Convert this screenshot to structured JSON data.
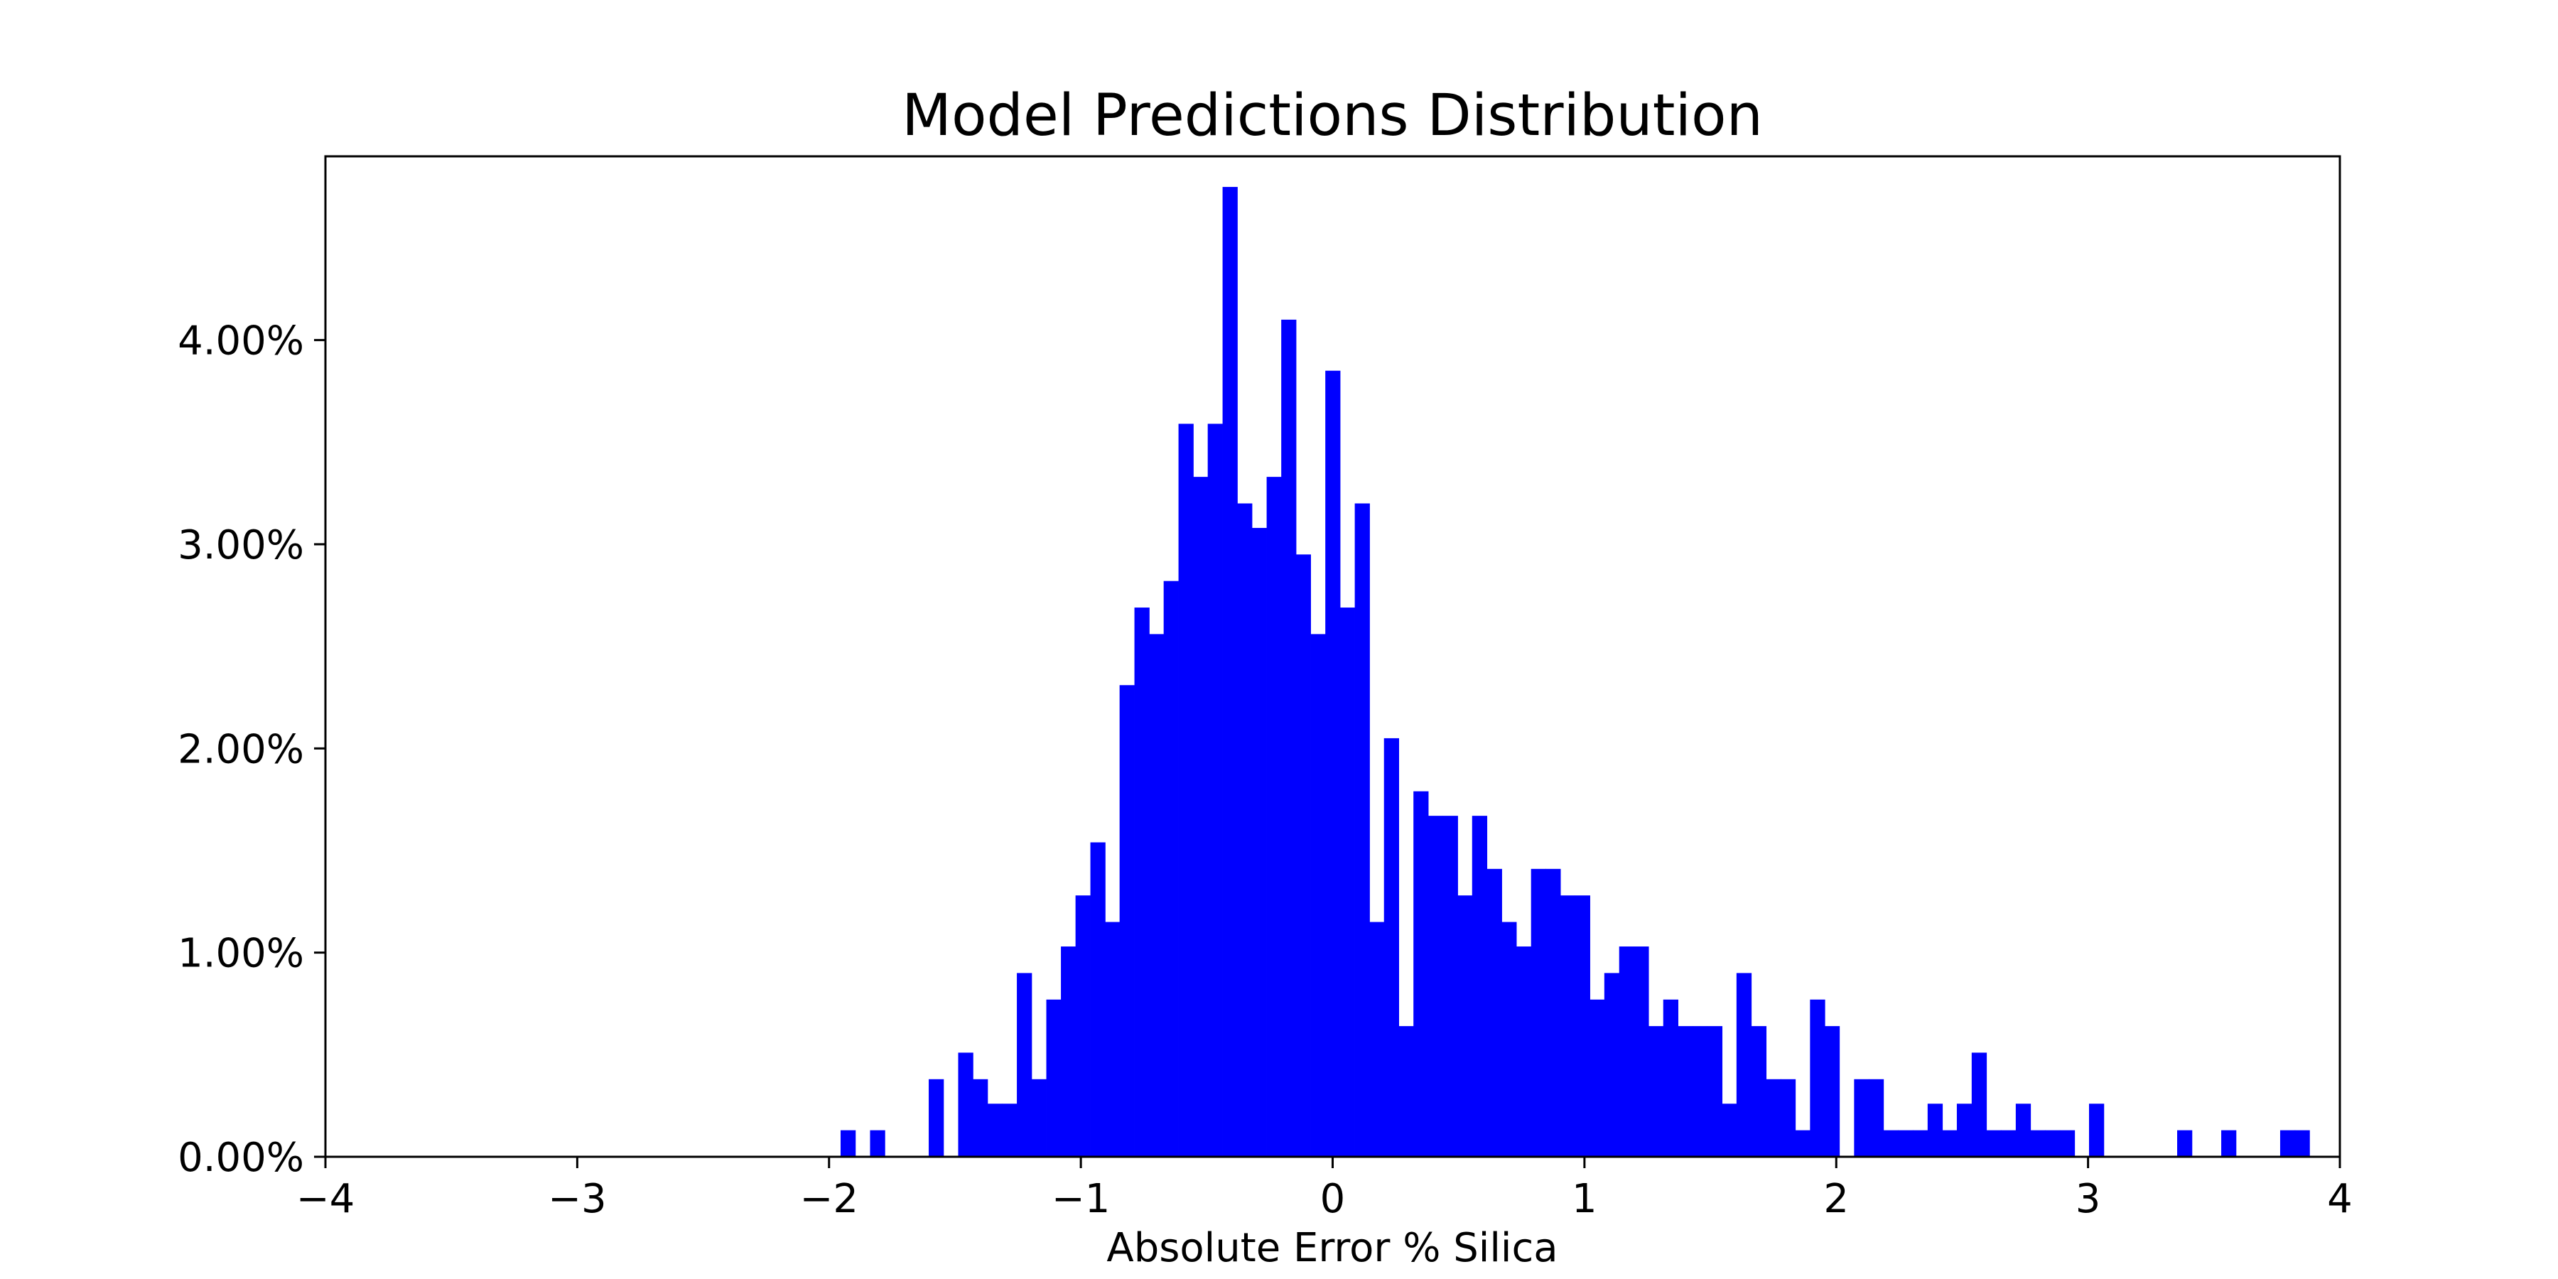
{
  "chart_data": {
    "type": "bar",
    "title": "Model Predictions Distribution",
    "xlabel": "Absolute Error % Silica",
    "ylabel": "",
    "xlim": [
      -4,
      4
    ],
    "ylim": [
      0,
      4.9
    ],
    "x_ticks": [
      -4,
      -3,
      -2,
      -1,
      0,
      1,
      2,
      3,
      4
    ],
    "x_tick_labels": [
      "−4",
      "−3",
      "−2",
      "−1",
      "0",
      "1",
      "2",
      "3",
      "4"
    ],
    "y_ticks": [
      0,
      1,
      2,
      3,
      4
    ],
    "y_tick_labels": [
      "0.00%",
      "1.00%",
      "2.00%",
      "3.00%",
      "4.00%"
    ],
    "bar_color": "#0000ff",
    "grid": false,
    "legend": "none",
    "bin_width": 0.0583,
    "x": [
      -1.925,
      -1.867,
      -1.808,
      -1.75,
      -1.692,
      -1.633,
      -1.575,
      -1.517,
      -1.458,
      -1.4,
      -1.342,
      -1.283,
      -1.225,
      -1.167,
      -1.108,
      -1.05,
      -0.992,
      -0.933,
      -0.875,
      -0.817,
      -0.758,
      -0.7,
      -0.642,
      -0.583,
      -0.525,
      -0.467,
      -0.408,
      -0.35,
      -0.292,
      -0.233,
      -0.175,
      -0.117,
      -0.058,
      0.0,
      0.058,
      0.117,
      0.175,
      0.233,
      0.292,
      0.35,
      0.408,
      0.467,
      0.525,
      0.583,
      0.642,
      0.7,
      0.758,
      0.817,
      0.875,
      0.933,
      0.992,
      1.05,
      1.108,
      1.167,
      1.225,
      1.283,
      1.342,
      1.4,
      1.458,
      1.517,
      1.575,
      1.633,
      1.692,
      1.75,
      1.808,
      1.867,
      1.925,
      1.983,
      2.042,
      2.1,
      2.158,
      2.217,
      2.275,
      2.333,
      2.392,
      2.45,
      2.508,
      2.567,
      2.625,
      2.683,
      2.742,
      2.8,
      2.858,
      2.917,
      2.975,
      3.033,
      3.092,
      3.15,
      3.208,
      3.267,
      3.325,
      3.383,
      3.442,
      3.5,
      3.558,
      3.617,
      3.675,
      3.733,
      3.792,
      3.85
    ],
    "values": [
      0.13,
      0,
      0.13,
      0,
      0,
      0,
      0.38,
      0,
      0.51,
      0.38,
      0.26,
      0.26,
      0.9,
      0.38,
      0.77,
      1.03,
      1.28,
      1.54,
      1.15,
      2.31,
      2.69,
      2.56,
      2.82,
      3.59,
      3.33,
      3.59,
      4.75,
      3.2,
      3.08,
      3.33,
      4.1,
      2.95,
      2.56,
      3.85,
      2.69,
      3.2,
      1.15,
      2.05,
      0.64,
      1.79,
      1.67,
      1.67,
      1.28,
      1.67,
      1.41,
      1.15,
      1.03,
      1.41,
      1.41,
      1.28,
      1.28,
      0.77,
      0.9,
      1.03,
      1.03,
      0.64,
      0.77,
      0.64,
      0.64,
      0.64,
      0.26,
      0.9,
      0.64,
      0.38,
      0.38,
      0.13,
      0.77,
      0.64,
      0,
      0.38,
      0.38,
      0.13,
      0.13,
      0.13,
      0.26,
      0.13,
      0.26,
      0.51,
      0.13,
      0.13,
      0.26,
      0.13,
      0.13,
      0.13,
      0,
      0.26,
      0,
      0,
      0,
      0,
      0,
      0.13,
      0,
      0,
      0.13,
      0,
      0,
      0,
      0.13,
      0.13
    ]
  }
}
